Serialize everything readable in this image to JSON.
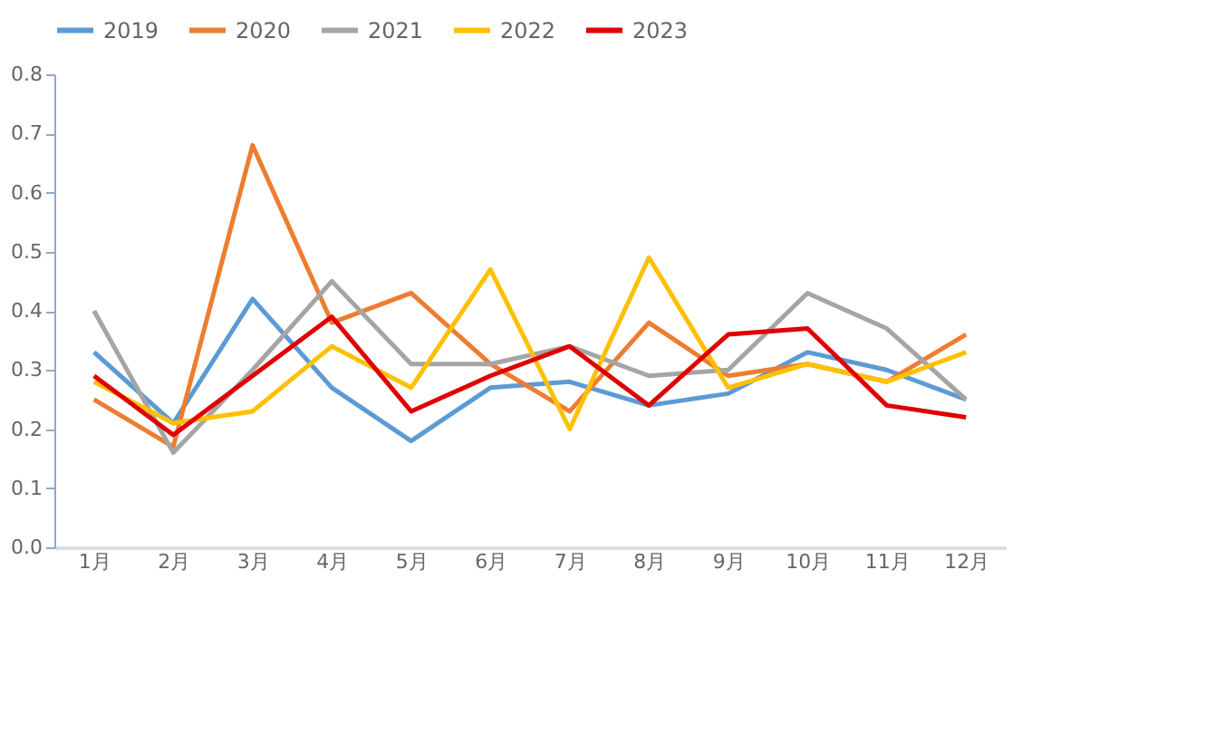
{
  "chart_data": {
    "type": "line",
    "categories": [
      "1月",
      "2月",
      "3月",
      "4月",
      "5月",
      "6月",
      "7月",
      "8月",
      "9月",
      "10月",
      "11月",
      "12月"
    ],
    "series": [
      {
        "name": "2019",
        "color": "#5b9bd5",
        "values": [
          0.33,
          0.21,
          0.42,
          0.27,
          0.18,
          0.27,
          0.28,
          0.24,
          0.26,
          0.33,
          0.3,
          0.25
        ]
      },
      {
        "name": "2020",
        "color": "#ed7d31",
        "values": [
          0.25,
          0.17,
          0.68,
          0.38,
          0.43,
          0.31,
          0.23,
          0.38,
          0.29,
          0.31,
          0.28,
          0.36
        ]
      },
      {
        "name": "2021",
        "color": "#a5a5a5",
        "values": [
          0.4,
          0.16,
          0.3,
          0.45,
          0.31,
          0.31,
          0.34,
          0.29,
          0.3,
          0.43,
          0.37,
          0.25
        ]
      },
      {
        "name": "2022",
        "color": "#ffc000",
        "values": [
          0.28,
          0.21,
          0.23,
          0.34,
          0.27,
          0.47,
          0.2,
          0.49,
          0.27,
          0.31,
          0.28,
          0.33
        ]
      },
      {
        "name": "2023",
        "color": "#e00000",
        "values": [
          0.29,
          0.19,
          0.29,
          0.39,
          0.23,
          0.29,
          0.34,
          0.24,
          0.36,
          0.37,
          0.24,
          0.22
        ]
      }
    ],
    "ylim": [
      0,
      0.8
    ],
    "yticks": [
      {
        "value": 0,
        "label": "0.0"
      },
      {
        "value": 0.1,
        "label": "0.1"
      },
      {
        "value": 0.2,
        "label": "0.2"
      },
      {
        "value": 0.3,
        "label": "0.3"
      },
      {
        "value": 0.4,
        "label": "0.4"
      },
      {
        "value": 0.5,
        "label": "0.5"
      },
      {
        "value": 0.6,
        "label": "0.6"
      },
      {
        "value": 0.7,
        "label": "0.7"
      },
      {
        "value": 0.8,
        "label": "0.8"
      }
    ],
    "grid": false,
    "legend": "top",
    "marker": "none",
    "line_style": "solid"
  }
}
